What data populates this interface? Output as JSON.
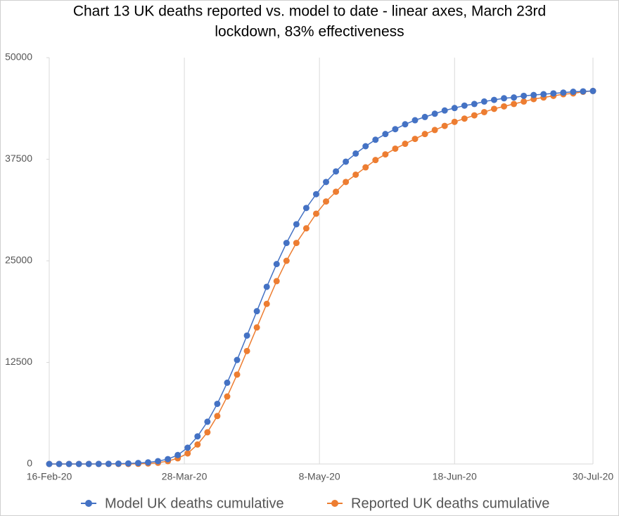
{
  "chart_data": {
    "type": "line",
    "title": [
      "Chart 13 UK deaths reported vs. model to date -  linear axes, March 23rd",
      "lockdown, 83% effectiveness"
    ],
    "x": [
      "2020-02-16",
      "2020-02-19",
      "2020-02-22",
      "2020-02-25",
      "2020-02-28",
      "2020-03-02",
      "2020-03-05",
      "2020-03-08",
      "2020-03-11",
      "2020-03-14",
      "2020-03-17",
      "2020-03-20",
      "2020-03-23",
      "2020-03-26",
      "2020-03-29",
      "2020-04-01",
      "2020-04-04",
      "2020-04-07",
      "2020-04-10",
      "2020-04-13",
      "2020-04-16",
      "2020-04-19",
      "2020-04-22",
      "2020-04-25",
      "2020-04-28",
      "2020-05-01",
      "2020-05-04",
      "2020-05-07",
      "2020-05-10",
      "2020-05-13",
      "2020-05-16",
      "2020-05-19",
      "2020-05-22",
      "2020-05-25",
      "2020-05-28",
      "2020-05-31",
      "2020-06-03",
      "2020-06-06",
      "2020-06-09",
      "2020-06-12",
      "2020-06-15",
      "2020-06-18",
      "2020-06-21",
      "2020-06-24",
      "2020-06-27",
      "2020-06-30",
      "2020-07-03",
      "2020-07-06",
      "2020-07-09",
      "2020-07-12",
      "2020-07-15",
      "2020-07-18",
      "2020-07-21",
      "2020-07-24",
      "2020-07-27",
      "2020-07-30"
    ],
    "series": [
      {
        "name": "Model UK deaths cumulative",
        "color": "#4472c4",
        "values": [
          0,
          0,
          0,
          0,
          0,
          10,
          20,
          40,
          70,
          120,
          200,
          350,
          600,
          1100,
          2000,
          3400,
          5200,
          7400,
          10000,
          12800,
          15800,
          18800,
          21800,
          24600,
          27200,
          29500,
          31500,
          33200,
          34700,
          36000,
          37200,
          38200,
          39100,
          39900,
          40600,
          41200,
          41800,
          42300,
          42700,
          43100,
          43500,
          43800,
          44100,
          44300,
          44600,
          44800,
          45000,
          45100,
          45300,
          45400,
          45500,
          45600,
          45700,
          45800,
          45850,
          45900
        ]
      },
      {
        "name": "Reported UK deaths cumulative",
        "color": "#ed7d31",
        "values": [
          0,
          0,
          0,
          0,
          0,
          0,
          0,
          0,
          0,
          20,
          60,
          150,
          350,
          700,
          1300,
          2400,
          3900,
          5900,
          8300,
          11000,
          13900,
          16800,
          19700,
          22500,
          25000,
          27200,
          29000,
          30800,
          32300,
          33500,
          34700,
          35600,
          36500,
          37400,
          38100,
          38800,
          39400,
          40000,
          40600,
          41100,
          41600,
          42100,
          42500,
          42900,
          43300,
          43700,
          44000,
          44300,
          44600,
          44900,
          45100,
          45300,
          45500,
          45600,
          45800,
          45900
        ]
      }
    ],
    "xlim": [
      "2020-02-16",
      "2020-07-30"
    ],
    "xticks": [
      {
        "value": "2020-02-16",
        "label": "16-Feb-20"
      },
      {
        "value": "2020-03-28",
        "label": "28-Mar-20"
      },
      {
        "value": "2020-05-08",
        "label": "8-May-20"
      },
      {
        "value": "2020-06-18",
        "label": "18-Jun-20"
      },
      {
        "value": "2020-07-30",
        "label": "30-Jul-20"
      }
    ],
    "ylim": [
      0,
      50000
    ],
    "yticks": [
      0,
      12500,
      25000,
      37500,
      50000
    ],
    "grid": "x",
    "legend": "bottom"
  }
}
